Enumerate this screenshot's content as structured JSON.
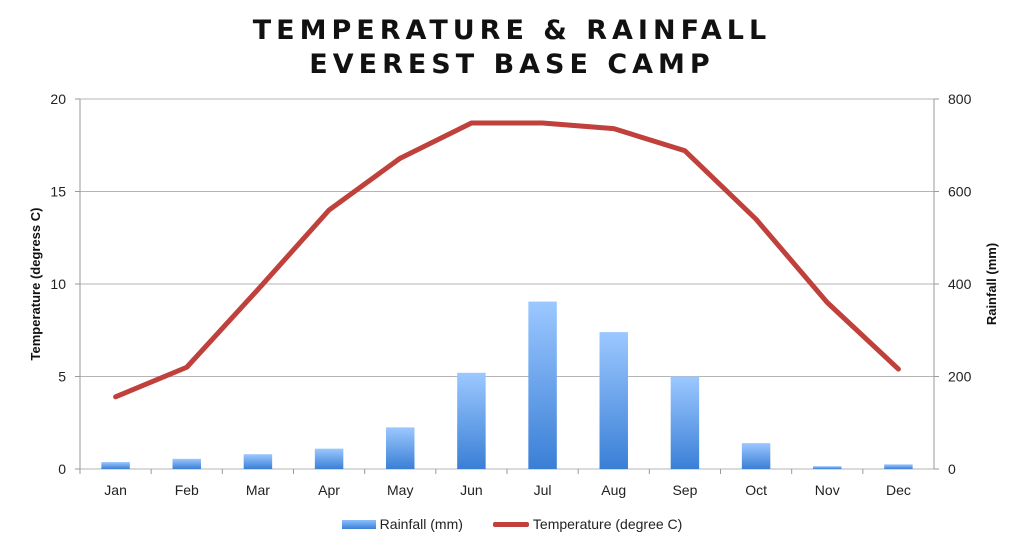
{
  "chart_data": {
    "type": "bar+line",
    "title_line1": "TEMPERATURE & RAINFALL",
    "title_line2": "EVEREST BASE CAMP",
    "categories": [
      "Jan",
      "Feb",
      "Mar",
      "Apr",
      "May",
      "Jun",
      "Jul",
      "Aug",
      "Sep",
      "Oct",
      "Nov",
      "Dec"
    ],
    "series": [
      {
        "name": "Rainfall (mm)",
        "type": "bar",
        "axis": "right",
        "color": "#4a8ee0",
        "values": [
          15,
          22,
          32,
          44,
          90,
          208,
          362,
          296,
          200,
          56,
          6,
          10
        ]
      },
      {
        "name": "Temperature (degree C)",
        "type": "line",
        "axis": "left",
        "color": "#c0413c",
        "values": [
          3.9,
          5.5,
          9.7,
          14,
          16.8,
          18.7,
          18.7,
          18.4,
          17.2,
          13.5,
          9,
          5.4
        ]
      }
    ],
    "ylabel_left": "Temperature (degress C)",
    "ylabel_right": "Rainfall (mm)",
    "ylim_left": [
      0,
      20
    ],
    "ylim_right": [
      0,
      800
    ],
    "yticks_left": [
      "0",
      "5",
      "10",
      "15",
      "20"
    ],
    "yticks_right": [
      "0",
      "200",
      "400",
      "600",
      "800"
    ],
    "grid": true,
    "legend": "bottom"
  }
}
